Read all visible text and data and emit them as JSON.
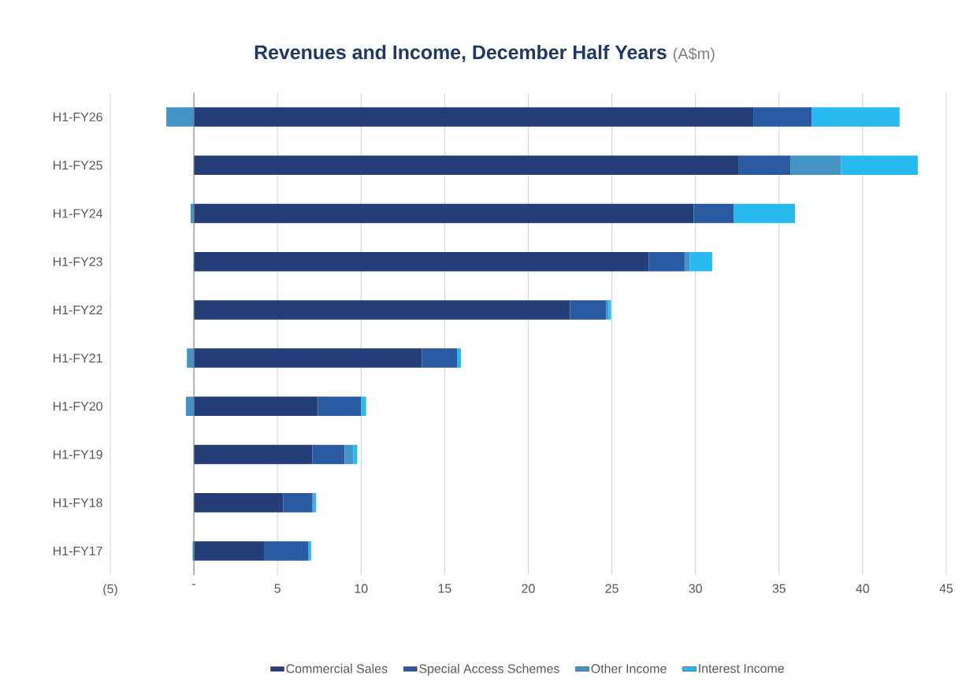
{
  "chart_data": {
    "type": "bar",
    "orientation": "horizontal",
    "stacked": true,
    "title": "Revenues and Income, December Half Years",
    "subtitle": "(A$m)",
    "categories": [
      "H1-FY26",
      "H1-FY25",
      "H1-FY24",
      "H1-FY23",
      "H1-FY22",
      "H1-FY21",
      "H1-FY20",
      "H1-FY19",
      "H1-FY18",
      "H1-FY17"
    ],
    "series": [
      {
        "name": "Commercial Sales",
        "color": "#243f77",
        "values": [
          33.46,
          32.6,
          29.9,
          27.2,
          22.5,
          13.64,
          7.41,
          7.09,
          5.35,
          4.19
        ]
      },
      {
        "name": "Special Access Schemes",
        "color": "#2a5aa2",
        "values": [
          3.5,
          3.1,
          2.4,
          2.15,
          2.15,
          2.1,
          2.59,
          1.92,
          1.74,
          2.67
        ]
      },
      {
        "name": "Other Income",
        "color": "#4393c6",
        "values": [
          -1.65,
          3.0,
          -0.2,
          0.3,
          0.15,
          -0.42,
          -0.48,
          0.53,
          0.1,
          -0.08
        ]
      },
      {
        "name": "Interest Income",
        "color": "#27b9ef",
        "values": [
          5.25,
          4.6,
          3.65,
          1.35,
          0.15,
          0.23,
          0.3,
          0.23,
          0.12,
          0.15
        ]
      }
    ],
    "xlim": [
      -5,
      45
    ],
    "xticks": [
      {
        "value": -5,
        "label": "(5)"
      },
      {
        "value": 0,
        "label": "-"
      },
      5,
      10,
      15,
      20,
      25,
      30,
      35,
      40,
      45
    ],
    "grid": "x",
    "legend": "bottom"
  }
}
